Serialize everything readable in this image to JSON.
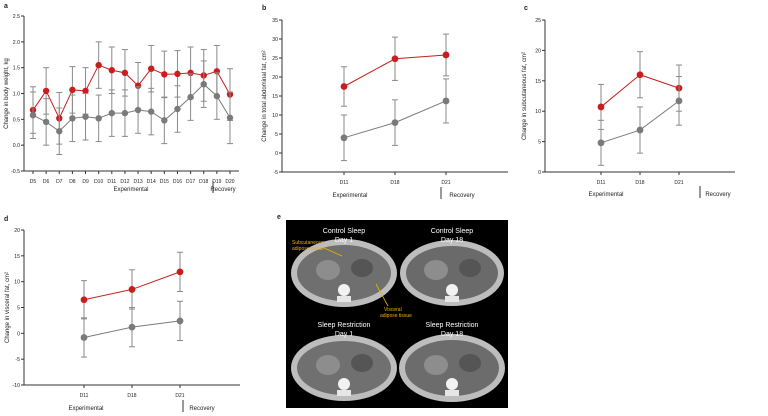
{
  "chart_data": [
    {
      "id": "a",
      "panel_label": "a",
      "type": "line",
      "ylabel": "Change in body weight, kg",
      "ylim": [
        -0.5,
        2.5
      ],
      "yticks": [
        -0.5,
        0.0,
        0.5,
        1.0,
        1.5,
        2.0,
        2.5
      ],
      "ytick_labels": [
        "-0.5",
        "0.0",
        "0.5",
        "1.0",
        "1.5",
        "2.0",
        "2.5"
      ],
      "categories": [
        "D5",
        "D6",
        "D7",
        "D8",
        "D9",
        "D10",
        "D11",
        "D12",
        "D13",
        "D14",
        "D15",
        "D16",
        "D17",
        "D18",
        "D19",
        "D20"
      ],
      "series": [
        {
          "name": "Sleep restriction",
          "color": "#c81e1e",
          "values": [
            0.68,
            1.05,
            0.52,
            1.07,
            1.05,
            1.55,
            1.45,
            1.4,
            1.15,
            1.48,
            1.37,
            1.38,
            1.4,
            1.35,
            1.43,
            0.98
          ],
          "err": [
            0.45,
            0.45,
            0.5,
            0.45,
            0.45,
            0.45,
            0.45,
            0.45,
            0.45,
            0.45,
            0.45,
            0.45,
            0.5,
            0.5,
            0.5,
            0.5
          ]
        },
        {
          "name": "Control sleep",
          "color": "#7a7a7a",
          "values": [
            0.58,
            0.45,
            0.27,
            0.52,
            0.55,
            0.52,
            0.62,
            0.62,
            0.68,
            0.65,
            0.48,
            0.7,
            0.93,
            1.18,
            0.95,
            0.53
          ],
          "err": [
            0.45,
            0.45,
            0.45,
            0.45,
            0.45,
            0.45,
            0.45,
            0.45,
            0.45,
            0.45,
            0.45,
            0.45,
            0.45,
            0.45,
            0.45,
            0.5
          ]
        }
      ],
      "group_labels": {
        "experimental": "Experimental",
        "recovery": "Recovery"
      }
    },
    {
      "id": "b",
      "panel_label": "b",
      "type": "line",
      "ylabel": "Change in total abdominal fat, cm²",
      "ylim": [
        -5,
        35
      ],
      "yticks": [
        -5,
        0,
        5,
        10,
        15,
        20,
        25,
        30,
        35
      ],
      "ytick_labels": [
        "-5",
        "0",
        "5",
        "10",
        "15",
        "20",
        "25",
        "30",
        "35"
      ],
      "categories": [
        "D11",
        "D18",
        "D21"
      ],
      "series": [
        {
          "name": "Sleep restriction",
          "color": "#c81e1e",
          "values": [
            17.5,
            24.8,
            25.8
          ],
          "err": [
            5.2,
            5.7,
            5.5
          ]
        },
        {
          "name": "Control sleep",
          "color": "#7a7a7a",
          "values": [
            4.0,
            8.0,
            13.7
          ],
          "err": [
            6.0,
            6.0,
            5.8
          ]
        }
      ],
      "group_labels": {
        "experimental": "Experimental",
        "recovery": "Recovery"
      }
    },
    {
      "id": "c",
      "panel_label": "c",
      "type": "line",
      "ylabel": "Change in subcutaneous fat, cm²",
      "ylim": [
        0,
        25
      ],
      "yticks": [
        0,
        5,
        10,
        15,
        20,
        25
      ],
      "ytick_labels": [
        "0",
        "5",
        "10",
        "15",
        "20",
        "25"
      ],
      "categories": [
        "D11",
        "D18",
        "D21"
      ],
      "series": [
        {
          "name": "Sleep restriction",
          "color": "#c81e1e",
          "values": [
            10.7,
            16.0,
            13.8
          ],
          "err": [
            3.7,
            3.8,
            3.8
          ]
        },
        {
          "name": "Control sleep",
          "color": "#7a7a7a",
          "values": [
            4.8,
            6.9,
            11.7
          ],
          "err": [
            3.7,
            3.8,
            4.0
          ]
        }
      ],
      "group_labels": {
        "experimental": "Experimental",
        "recovery": "Recovery"
      }
    },
    {
      "id": "d",
      "panel_label": "d",
      "type": "line",
      "ylabel": "Change in visceral fat, cm²",
      "ylim": [
        -10,
        20
      ],
      "yticks": [
        -10,
        -5,
        0,
        5,
        10,
        15,
        20
      ],
      "ytick_labels": [
        "-10",
        "-5",
        "0",
        "5",
        "10",
        "15",
        "20"
      ],
      "categories": [
        "D11",
        "D18",
        "D21"
      ],
      "series": [
        {
          "name": "Sleep restriction",
          "color": "#c81e1e",
          "values": [
            6.5,
            8.5,
            11.9
          ],
          "err": [
            3.7,
            3.8,
            3.8
          ]
        },
        {
          "name": "Control sleep",
          "color": "#7a7a7a",
          "values": [
            -0.8,
            1.2,
            2.4
          ],
          "err": [
            3.8,
            3.8,
            3.8
          ]
        }
      ],
      "group_labels": {
        "experimental": "Experimental",
        "recovery": "Recovery"
      }
    }
  ],
  "panel_e": {
    "panel_label": "e",
    "scans": [
      {
        "title_line1": "Control Sleep",
        "title_line2": "Day 1"
      },
      {
        "title_line1": "Control Sleep",
        "title_line2": "Day 18"
      },
      {
        "title_line1": "Sleep Restriction",
        "title_line2": "Day 1"
      },
      {
        "title_line1": "Sleep Restriction",
        "title_line2": "Day 18"
      }
    ],
    "annotations": {
      "subcutaneous_line1": "Subcutaneous",
      "subcutaneous_line2": "adipose tissue",
      "visceral_line1": "Visceral",
      "visceral_line2": "adipose tissue"
    },
    "annotation_color": "#e8b400"
  }
}
